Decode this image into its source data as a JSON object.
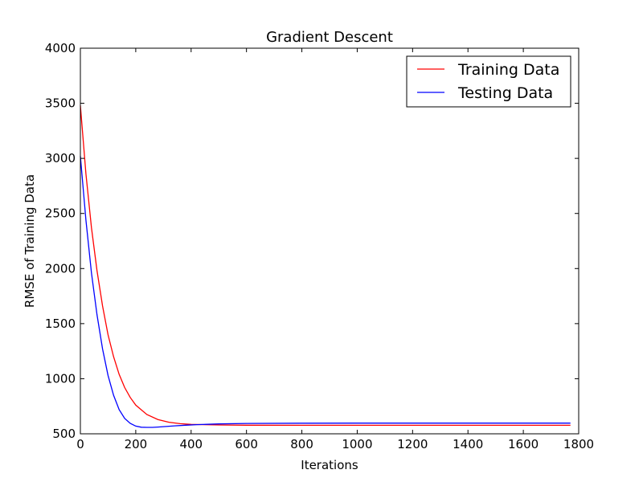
{
  "chart_data": {
    "type": "line",
    "title": "Gradient Descent",
    "xlabel": "Iterations",
    "ylabel": "RMSE of Training Data",
    "xlim": [
      0,
      1800
    ],
    "ylim": [
      500,
      4000
    ],
    "xticks": [
      0,
      200,
      400,
      600,
      800,
      1000,
      1200,
      1400,
      1600,
      1800
    ],
    "yticks": [
      500,
      1000,
      1500,
      2000,
      2500,
      3000,
      3500,
      4000
    ],
    "grid": false,
    "legend_position": "top-right",
    "series": [
      {
        "name": "Training Data",
        "color": "#ff0000",
        "x": [
          0,
          20,
          40,
          60,
          80,
          100,
          120,
          140,
          160,
          180,
          200,
          240,
          280,
          320,
          360,
          400,
          500,
          600,
          800,
          1000,
          1200,
          1400,
          1600,
          1770
        ],
        "y": [
          3480,
          2860,
          2370,
          1980,
          1660,
          1400,
          1200,
          1040,
          920,
          830,
          760,
          675,
          630,
          605,
          592,
          585,
          580,
          578,
          577,
          577,
          577,
          577,
          577,
          577
        ]
      },
      {
        "name": "Testing Data",
        "color": "#0000ff",
        "x": [
          0,
          20,
          40,
          60,
          80,
          100,
          120,
          140,
          160,
          180,
          200,
          220,
          240,
          260,
          280,
          300,
          340,
          380,
          420,
          500,
          600,
          800,
          1000,
          1200,
          1400,
          1600,
          1770
        ],
        "y": [
          3020,
          2440,
          1960,
          1580,
          1270,
          1030,
          850,
          720,
          640,
          595,
          570,
          560,
          558,
          558,
          561,
          565,
          572,
          578,
          583,
          590,
          594,
          596,
          597,
          597,
          597,
          597,
          597
        ]
      }
    ]
  }
}
